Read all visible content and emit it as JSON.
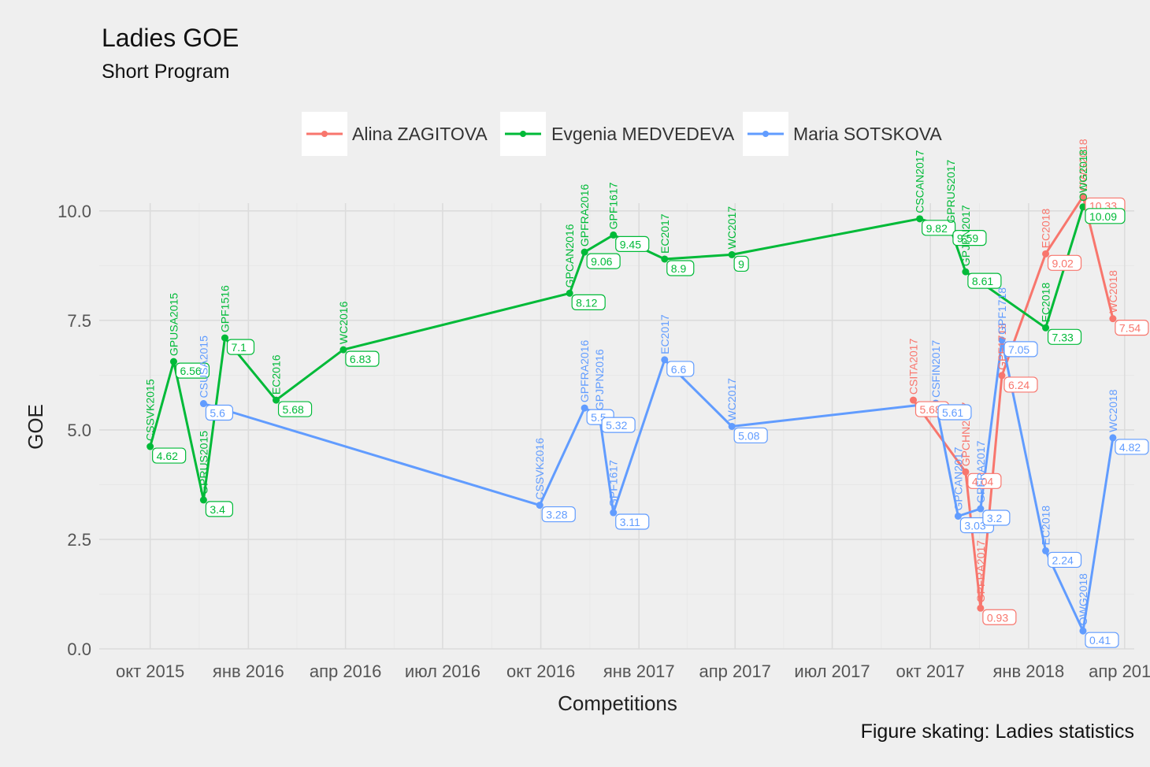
{
  "chart_data": {
    "type": "line",
    "title": "Ladies GOE",
    "subtitle": "Short Program",
    "xlabel": "Competitions",
    "ylabel": "GOE",
    "caption": "Figure skating: Ladies statistics",
    "xlim": [
      "2015-09-01",
      "2018-04-10"
    ],
    "ylim": [
      0,
      10.5
    ],
    "x_ticks": [
      {
        "date": "2015-10-01",
        "label": "окт 2015"
      },
      {
        "date": "2016-01-01",
        "label": "янв 2016"
      },
      {
        "date": "2016-04-01",
        "label": "апр 2016"
      },
      {
        "date": "2016-07-01",
        "label": "июл 2016"
      },
      {
        "date": "2016-10-01",
        "label": "окт 2016"
      },
      {
        "date": "2017-01-01",
        "label": "янв 2017"
      },
      {
        "date": "2017-04-01",
        "label": "апр 2017"
      },
      {
        "date": "2017-07-01",
        "label": "июл 2017"
      },
      {
        "date": "2017-10-01",
        "label": "окт 2017"
      },
      {
        "date": "2018-01-01",
        "label": "янв 2018"
      },
      {
        "date": "2018-04-01",
        "label": "апр 2018"
      }
    ],
    "y_ticks": [
      {
        "value": 0,
        "label": "0.0"
      },
      {
        "value": 2.5,
        "label": "2.5"
      },
      {
        "value": 5,
        "label": "5.0"
      },
      {
        "value": 7.5,
        "label": "7.5"
      },
      {
        "value": 10,
        "label": "10.0"
      }
    ],
    "grid": true,
    "legend_position": "top",
    "series": [
      {
        "name": "Alina ZAGITOVA",
        "color": "#f8766d",
        "points": [
          {
            "date": "2017-09-15",
            "y": 5.68,
            "label": "CSITA2017"
          },
          {
            "date": "2017-11-03",
            "y": 4.04,
            "label": "GPCHN2017"
          },
          {
            "date": "2017-11-17",
            "y": 0.93,
            "label": "GPFRA2017"
          },
          {
            "date": "2017-12-07",
            "y": 6.24,
            "label": "GPF1718"
          },
          {
            "date": "2018-01-17",
            "y": 9.02,
            "label": "EC2018"
          },
          {
            "date": "2018-02-21",
            "y": 10.33,
            "label": "OWG2018"
          },
          {
            "date": "2018-03-21",
            "y": 7.54,
            "label": "WC2018"
          }
        ]
      },
      {
        "name": "Evgenia MEDVEDEVA",
        "color": "#00ba38",
        "points": [
          {
            "date": "2015-10-01",
            "y": 4.62,
            "label": "CSSVK2015"
          },
          {
            "date": "2015-10-23",
            "y": 6.56,
            "label": "GPUSA2015"
          },
          {
            "date": "2015-11-20",
            "y": 3.4,
            "label": "GPRUS2015"
          },
          {
            "date": "2015-12-10",
            "y": 7.1,
            "label": "GPF1516"
          },
          {
            "date": "2016-01-27",
            "y": 5.68,
            "label": "EC2016"
          },
          {
            "date": "2016-03-30",
            "y": 6.83,
            "label": "WC2016"
          },
          {
            "date": "2016-10-28",
            "y": 8.12,
            "label": "GPCAN2016"
          },
          {
            "date": "2016-11-11",
            "y": 9.06,
            "label": "GPFRA2016"
          },
          {
            "date": "2016-12-08",
            "y": 9.45,
            "label": "GPF1617"
          },
          {
            "date": "2017-01-25",
            "y": 8.9,
            "label": "EC2017"
          },
          {
            "date": "2017-03-29",
            "y": 9.0,
            "label": "WC2017"
          },
          {
            "date": "2017-09-21",
            "y": 9.82,
            "label": "CSCAN2017"
          },
          {
            "date": "2017-10-20",
            "y": 9.59,
            "label": "GPRUS2017"
          },
          {
            "date": "2017-11-03",
            "y": 8.61,
            "label": "GPJPN2017"
          },
          {
            "date": "2018-01-17",
            "y": 7.33,
            "label": "EC2018"
          },
          {
            "date": "2018-02-21",
            "y": 10.09,
            "label": "OWG2018"
          }
        ]
      },
      {
        "name": "Maria SOTSKOVA",
        "color": "#619cff",
        "points": [
          {
            "date": "2015-11-20",
            "y": 5.6,
            "label": "CSUSA2015"
          },
          {
            "date": "2016-09-30",
            "y": 3.28,
            "label": "CSSVK2016"
          },
          {
            "date": "2016-11-11",
            "y": 5.5,
            "label": "GPFRA2016"
          },
          {
            "date": "2016-11-25",
            "y": 5.32,
            "label": "GPJPN2016"
          },
          {
            "date": "2016-12-08",
            "y": 3.11,
            "label": "GPF1617"
          },
          {
            "date": "2017-01-25",
            "y": 6.6,
            "label": "EC2017"
          },
          {
            "date": "2017-03-29",
            "y": 5.08,
            "label": "WC2017"
          },
          {
            "date": "2017-10-06",
            "y": 5.61,
            "label": "CSFIN2017"
          },
          {
            "date": "2017-10-27",
            "y": 3.03,
            "label": "GPCAN2017"
          },
          {
            "date": "2017-11-17",
            "y": 3.2,
            "label": "GPFRA2017"
          },
          {
            "date": "2017-12-07",
            "y": 7.05,
            "label": "GPF1718"
          },
          {
            "date": "2018-01-17",
            "y": 2.24,
            "label": "EC2018"
          },
          {
            "date": "2018-02-21",
            "y": 0.41,
            "label": "OWG2018"
          },
          {
            "date": "2018-03-21",
            "y": 4.82,
            "label": "WC2018"
          }
        ]
      }
    ]
  }
}
